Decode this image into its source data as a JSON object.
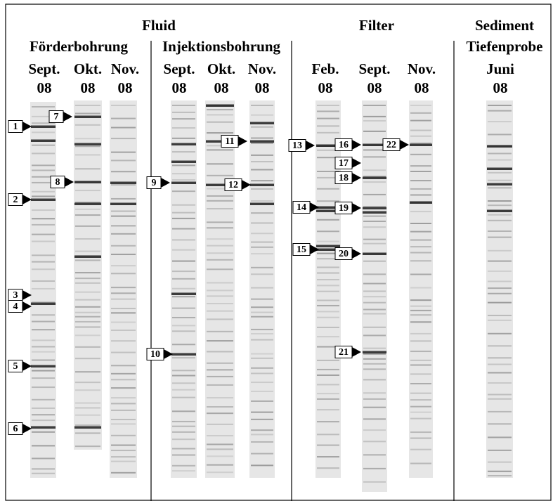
{
  "headers": {
    "fluid": "Fluid",
    "filter": "Filter",
    "sediment": "Sediment"
  },
  "subheaders": {
    "foerder": "Förderbohrung",
    "injektion": "Injektionsbohrung",
    "tiefe": "Tiefenprobe"
  },
  "lanes": [
    {
      "month": "Sept.",
      "year": "08"
    },
    {
      "month": "Okt.",
      "year": "08"
    },
    {
      "month": "Nov.",
      "year": "08"
    },
    {
      "month": "Sept.",
      "year": "08"
    },
    {
      "month": "Okt.",
      "year": "08"
    },
    {
      "month": "Nov.",
      "year": "08"
    },
    {
      "month": "Feb.",
      "year": "08"
    },
    {
      "month": "Sept.",
      "year": "08"
    },
    {
      "month": "Nov.",
      "year": "08"
    },
    {
      "month": "Juni",
      "year": "08"
    }
  ],
  "markers": [
    1,
    2,
    3,
    4,
    5,
    6,
    7,
    8,
    9,
    10,
    11,
    12,
    13,
    14,
    15,
    16,
    17,
    18,
    19,
    20,
    21,
    22
  ]
}
